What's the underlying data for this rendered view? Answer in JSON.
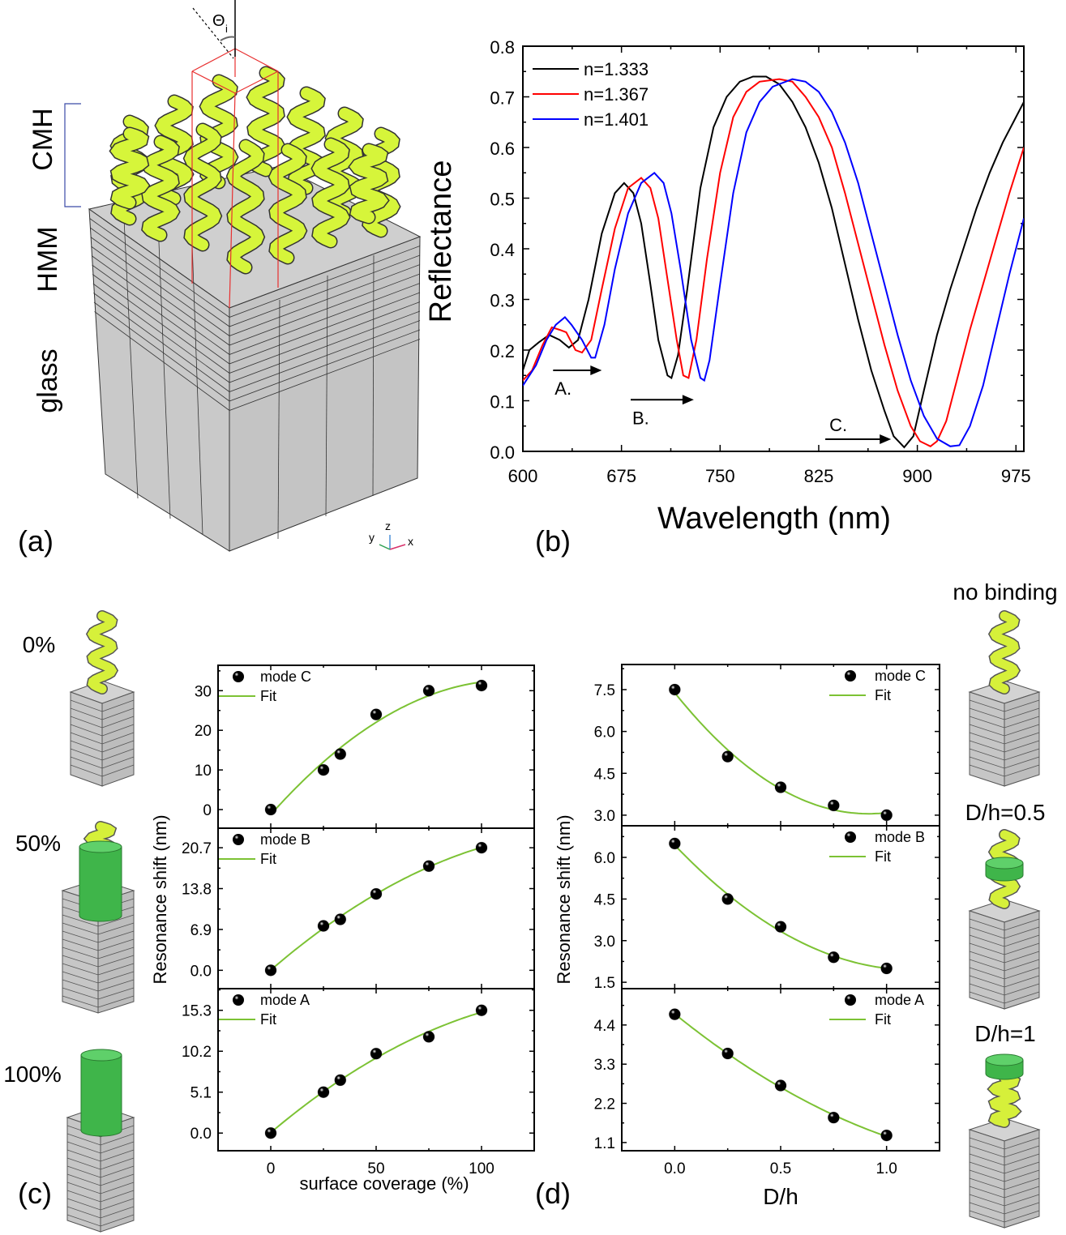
{
  "panel_labels": {
    "a": "(a)",
    "b": "(b)",
    "c": "(c)",
    "d": "(d)"
  },
  "panel_a": {
    "layer_labels": [
      "CMH",
      "HMM",
      "glass"
    ],
    "angle_label": "Θ",
    "angle_subscript": "i",
    "axes_triad": {
      "x": "x",
      "y": "y",
      "z": "z"
    },
    "colors": {
      "helix": "#d6f53a",
      "substrate": "#c8c8c8",
      "unit_cell": "#e83030",
      "bracket": "#3b4aa8"
    }
  },
  "panel_c_labels": [
    "0%",
    "50%",
    "100%"
  ],
  "panel_d_labels": [
    "no binding",
    "D/h=0.5",
    "D/h=1"
  ],
  "chart_data": [
    {
      "panel": "b",
      "type": "line",
      "xlabel": "Wavelength (nm)",
      "ylabel": "Reflectance",
      "xlim": [
        600,
        981
      ],
      "ylim": [
        0,
        0.8
      ],
      "xticks": [
        600,
        675,
        750,
        825,
        900,
        975
      ],
      "yticks": [
        0.0,
        0.1,
        0.2,
        0.3,
        0.4,
        0.5,
        0.6,
        0.7,
        0.8
      ],
      "ytick_labels": [
        "0.0",
        "0.1",
        "0.2",
        "0.3",
        "0.4",
        "0.5",
        "0.6",
        "0.7",
        "0.8"
      ],
      "legend": "top-left",
      "annotations": [
        {
          "text": "A.",
          "arrow_from": 623,
          "arrow_to": 660,
          "y": 0.16
        },
        {
          "text": "B.",
          "arrow_from": 682,
          "arrow_to": 730,
          "y": 0.102
        },
        {
          "text": "C.",
          "arrow_from": 830,
          "arrow_to": 880,
          "y": 0.024
        }
      ],
      "series": [
        {
          "name": "n=1.333",
          "color": "#000000",
          "x": [
            600,
            605,
            612,
            620,
            628,
            635,
            642,
            650,
            660,
            670,
            677,
            684,
            690,
            697,
            703,
            710,
            713,
            718,
            725,
            735,
            745,
            755,
            765,
            775,
            785,
            795,
            805,
            815,
            825,
            835,
            845,
            855,
            865,
            875,
            882,
            890,
            897,
            905,
            915,
            925,
            935,
            945,
            955,
            965,
            975,
            981
          ],
          "y": [
            0.16,
            0.2,
            0.215,
            0.23,
            0.22,
            0.205,
            0.22,
            0.3,
            0.43,
            0.51,
            0.53,
            0.51,
            0.45,
            0.33,
            0.22,
            0.15,
            0.145,
            0.19,
            0.32,
            0.52,
            0.64,
            0.7,
            0.73,
            0.74,
            0.74,
            0.725,
            0.69,
            0.64,
            0.57,
            0.48,
            0.37,
            0.26,
            0.16,
            0.08,
            0.03,
            0.008,
            0.03,
            0.12,
            0.23,
            0.32,
            0.4,
            0.48,
            0.55,
            0.61,
            0.66,
            0.69
          ]
        },
        {
          "name": "n=1.367",
          "color": "#ff0000",
          "x": [
            600,
            607,
            615,
            622,
            628,
            633,
            640,
            645,
            652,
            660,
            670,
            680,
            690,
            697,
            703,
            710,
            717,
            722,
            726,
            732,
            740,
            750,
            760,
            770,
            780,
            795,
            805,
            815,
            825,
            835,
            845,
            855,
            865,
            875,
            885,
            895,
            902,
            910,
            915,
            922,
            930,
            940,
            950,
            960,
            970,
            981
          ],
          "y": [
            0.14,
            0.16,
            0.21,
            0.245,
            0.24,
            0.235,
            0.2,
            0.195,
            0.22,
            0.32,
            0.44,
            0.52,
            0.54,
            0.52,
            0.46,
            0.34,
            0.22,
            0.15,
            0.145,
            0.22,
            0.38,
            0.55,
            0.66,
            0.71,
            0.73,
            0.735,
            0.73,
            0.7,
            0.66,
            0.6,
            0.51,
            0.41,
            0.31,
            0.21,
            0.12,
            0.05,
            0.02,
            0.01,
            0.02,
            0.06,
            0.14,
            0.24,
            0.33,
            0.42,
            0.51,
            0.6
          ]
        },
        {
          "name": "n=1.401",
          "color": "#0000ff",
          "x": [
            600,
            610,
            618,
            625,
            632,
            637,
            645,
            652,
            655,
            662,
            670,
            680,
            690,
            700,
            707,
            713,
            720,
            728,
            735,
            738,
            742,
            750,
            760,
            770,
            780,
            790,
            805,
            815,
            825,
            835,
            845,
            855,
            865,
            875,
            885,
            895,
            905,
            915,
            925,
            932,
            940,
            950,
            960,
            970,
            981
          ],
          "y": [
            0.13,
            0.17,
            0.22,
            0.25,
            0.265,
            0.25,
            0.22,
            0.185,
            0.185,
            0.25,
            0.36,
            0.47,
            0.53,
            0.55,
            0.53,
            0.47,
            0.36,
            0.22,
            0.145,
            0.14,
            0.18,
            0.33,
            0.51,
            0.63,
            0.69,
            0.72,
            0.735,
            0.73,
            0.71,
            0.67,
            0.61,
            0.53,
            0.43,
            0.33,
            0.23,
            0.14,
            0.07,
            0.025,
            0.01,
            0.012,
            0.05,
            0.13,
            0.24,
            0.35,
            0.46
          ]
        }
      ]
    },
    {
      "panel": "c",
      "subplot": "top",
      "type": "scatter",
      "ylabel": "Resonance shift (nm)",
      "xlim": [
        -25,
        125
      ],
      "ylim": [
        -4.7,
        36.4
      ],
      "xticks": [
        0,
        50,
        100
      ],
      "xtick_labels": [
        "",
        "",
        ""
      ],
      "yticks": [
        0,
        10,
        20,
        30
      ],
      "ytick_labels": [
        "0",
        "10",
        "20",
        "30"
      ],
      "legend": "top-left",
      "series": [
        {
          "name": "mode C",
          "color": "#3b4fa8",
          "x": [
            0,
            25,
            33,
            50,
            75,
            100
          ],
          "y": [
            0,
            10,
            14,
            24,
            30,
            31.3
          ]
        },
        {
          "name": "Fit",
          "color": "#7cc234",
          "kind": "fit"
        }
      ]
    },
    {
      "panel": "c",
      "subplot": "middle",
      "type": "scatter",
      "xlim": [
        -25,
        125
      ],
      "ylim": [
        -3.1,
        24
      ],
      "xticks": [
        0,
        50,
        100
      ],
      "xtick_labels": [
        "",
        "",
        ""
      ],
      "yticks": [
        0,
        6.9,
        13.8,
        20.7
      ],
      "ytick_labels": [
        "0.0",
        "6.9",
        "13.8",
        "20.7"
      ],
      "legend": "top-left",
      "series": [
        {
          "name": "mode B",
          "color": "#ff1a1a",
          "x": [
            0,
            25,
            33,
            50,
            75,
            100
          ],
          "y": [
            0,
            7.5,
            8.6,
            12.9,
            17.6,
            20.7
          ]
        },
        {
          "name": "Fit",
          "color": "#7cc234",
          "kind": "fit"
        }
      ]
    },
    {
      "panel": "c",
      "subplot": "bottom",
      "type": "scatter",
      "xlabel": "surface coverage (%)",
      "xlim": [
        -25,
        125
      ],
      "ylim": [
        -2.2,
        18
      ],
      "xticks": [
        0,
        50,
        100
      ],
      "xtick_labels": [
        "0",
        "50",
        "100"
      ],
      "yticks": [
        0,
        5.1,
        10.2,
        15.3
      ],
      "ytick_labels": [
        "0.0",
        "5.1",
        "10.2",
        "15.3"
      ],
      "legend": "top-left",
      "series": [
        {
          "name": "mode A",
          "color": "#111111",
          "x": [
            0,
            25,
            33,
            50,
            75,
            100
          ],
          "y": [
            0,
            5.1,
            6.6,
            9.9,
            12.0,
            15.3
          ]
        },
        {
          "name": "Fit",
          "color": "#7cc234",
          "kind": "fit"
        }
      ]
    },
    {
      "panel": "d",
      "subplot": "top",
      "type": "scatter",
      "ylabel": "Resonance shift (nm)",
      "xlim": [
        -0.25,
        1.25
      ],
      "ylim": [
        2.62,
        8.4
      ],
      "xticks": [
        0,
        0.5,
        1.0
      ],
      "xtick_labels": [
        "",
        "",
        ""
      ],
      "yticks": [
        3.0,
        4.5,
        6.0,
        7.5
      ],
      "ytick_labels": [
        "3.0",
        "4.5",
        "6.0",
        "7.5"
      ],
      "legend": "top-right",
      "series": [
        {
          "name": "mode C",
          "color": "#1a1aff",
          "x": [
            0,
            0.25,
            0.5,
            0.75,
            1.0
          ],
          "y": [
            7.5,
            5.1,
            4.0,
            3.35,
            3.0
          ]
        },
        {
          "name": "Fit",
          "color": "#7cc234",
          "kind": "fit"
        }
      ]
    },
    {
      "panel": "d",
      "subplot": "middle",
      "type": "scatter",
      "xlim": [
        -0.25,
        1.25
      ],
      "ylim": [
        1.27,
        7.14
      ],
      "xticks": [
        0,
        0.5,
        1.0
      ],
      "xtick_labels": [
        "",
        "",
        ""
      ],
      "yticks": [
        1.5,
        3.0,
        4.5,
        6.0
      ],
      "ytick_labels": [
        "1.5",
        "3.0",
        "4.5",
        "6.0"
      ],
      "legend": "top-right",
      "series": [
        {
          "name": "mode B",
          "color": "#ff1a1a",
          "x": [
            0,
            0.25,
            0.5,
            0.75,
            1.0
          ],
          "y": [
            6.5,
            4.5,
            3.5,
            2.4,
            2.0
          ]
        },
        {
          "name": "Fit",
          "color": "#7cc234",
          "kind": "fit"
        }
      ]
    },
    {
      "panel": "d",
      "subplot": "bottom",
      "type": "scatter",
      "xlabel": "D/h",
      "xlim": [
        -0.25,
        1.25
      ],
      "ylim": [
        0.87,
        5.42
      ],
      "xticks": [
        0,
        0.5,
        1.0
      ],
      "xtick_labels": [
        "0.0",
        "0.5",
        "1.0"
      ],
      "yticks": [
        1.1,
        2.2,
        3.3,
        4.4
      ],
      "ytick_labels": [
        "1.1",
        "2.2",
        "3.3",
        "4.4"
      ],
      "legend": "top-right",
      "series": [
        {
          "name": "mode A",
          "color": "#111111",
          "x": [
            0,
            0.25,
            0.5,
            0.75,
            1.0
          ],
          "y": [
            4.7,
            3.6,
            2.7,
            1.8,
            1.3
          ]
        },
        {
          "name": "Fit",
          "color": "#7cc234",
          "kind": "fit"
        }
      ]
    }
  ]
}
